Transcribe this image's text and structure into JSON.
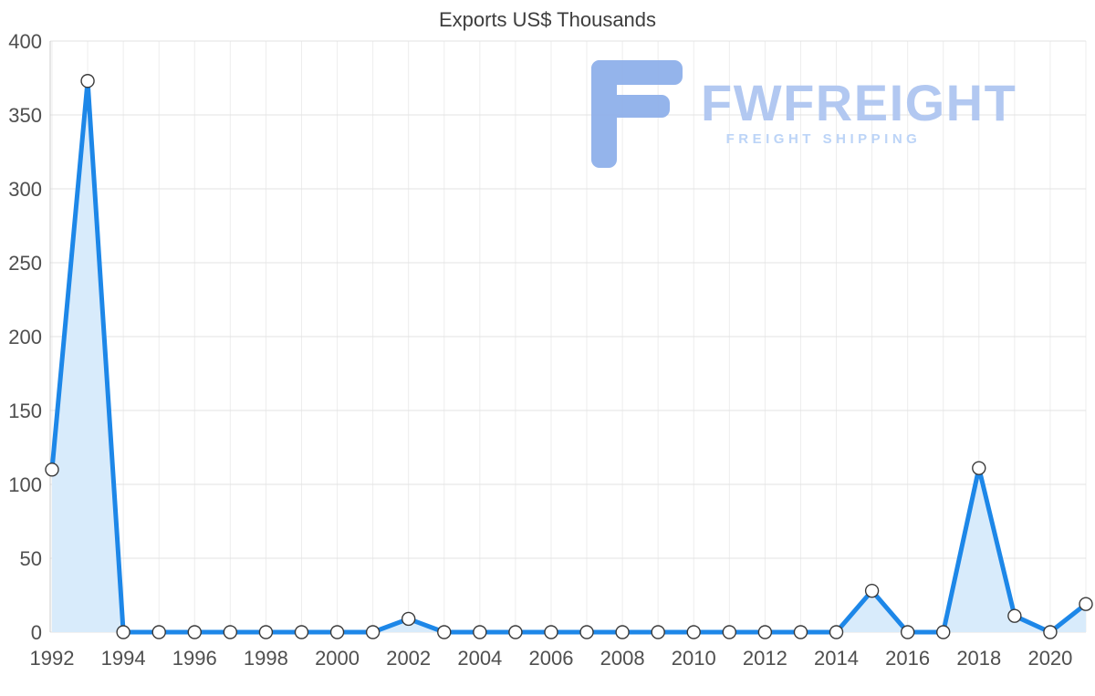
{
  "chart_data": {
    "type": "area",
    "title": "Exports US$ Thousands",
    "xlabel": "",
    "ylabel": "",
    "x": [
      1992,
      1993,
      1994,
      1995,
      1996,
      1997,
      1998,
      1999,
      2000,
      2001,
      2002,
      2003,
      2004,
      2005,
      2006,
      2007,
      2008,
      2009,
      2010,
      2011,
      2012,
      2013,
      2014,
      2015,
      2016,
      2017,
      2018,
      2019,
      2020,
      2021
    ],
    "values": [
      110,
      373,
      0,
      0,
      0,
      0,
      0,
      0,
      0,
      0,
      9,
      0,
      0,
      0,
      0,
      0,
      0,
      0,
      0,
      0,
      0,
      0,
      0,
      28,
      0,
      0,
      111,
      11,
      0,
      19
    ],
    "ylim": [
      0,
      400
    ],
    "y_ticks": [
      0,
      50,
      100,
      150,
      200,
      250,
      300,
      350,
      400
    ],
    "x_tick_labels": [
      "1992",
      "1994",
      "1996",
      "1998",
      "2000",
      "2002",
      "2004",
      "2006",
      "2008",
      "2010",
      "2012",
      "2014",
      "2016",
      "2018",
      "2020"
    ],
    "grid": true,
    "legend": false,
    "colors": {
      "line": "#1d87e8",
      "fill": "#d8ebfb",
      "marker_fill": "#ffffff",
      "marker_stroke": "#3a3a3a",
      "grid_h": "#e3e3e3",
      "grid_v": "#ededed",
      "axis_line": "#cccccc",
      "label": "#4f4f4f",
      "title": "#3d3d3d"
    }
  },
  "watermark": {
    "brand": "FWFREIGHT",
    "tagline": "FREIGHT SHIPPING",
    "icon": "fwfreight-f-icon",
    "colors": {
      "icon": "#8fb0ea",
      "brand": "#b2c8f1",
      "tagline": "#bcd4f7"
    }
  }
}
